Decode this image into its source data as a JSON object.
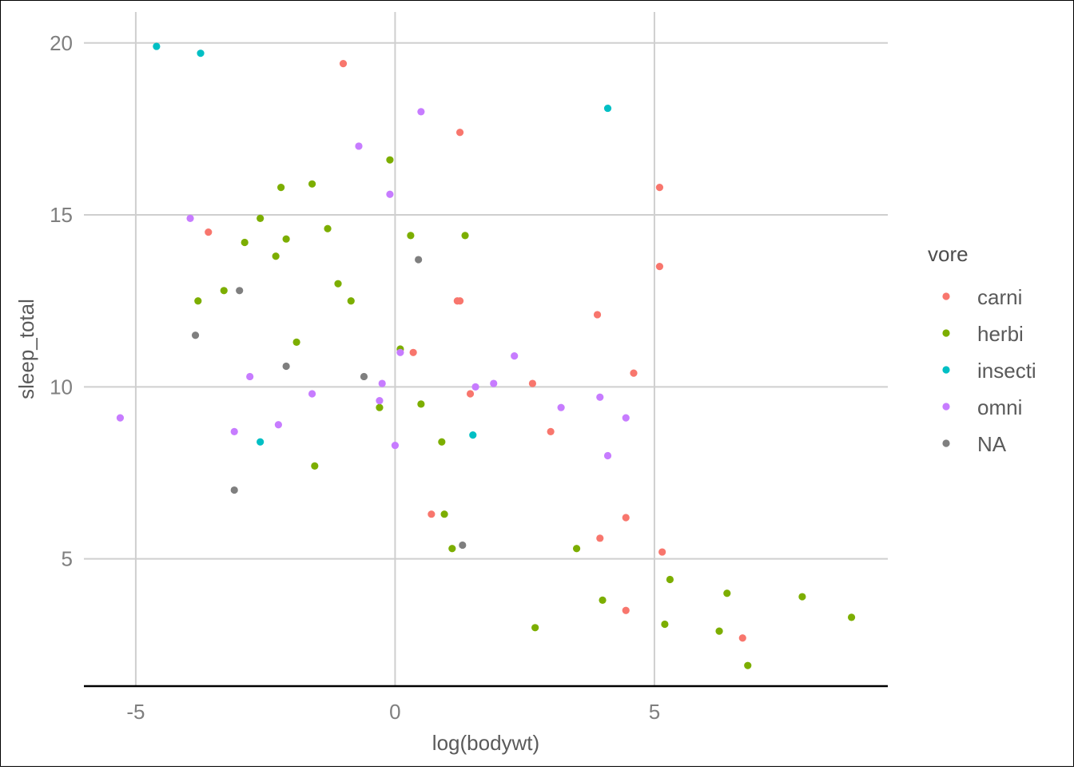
{
  "chart_data": {
    "type": "scatter",
    "xlabel": "log(bodywt)",
    "ylabel": "sleep_total",
    "xlim": [
      -6.0,
      9.5
    ],
    "ylim": [
      1.3,
      20.9
    ],
    "xticks": [
      -5,
      0,
      5
    ],
    "yticks": [
      5,
      10,
      15,
      20
    ],
    "x_tick_labels": [
      "-5",
      "0",
      "5"
    ],
    "y_tick_labels": [
      "5",
      "10",
      "15",
      "20"
    ],
    "grid": true,
    "legend": {
      "title": "vore",
      "position": "right"
    },
    "series": [
      {
        "name": "carni",
        "color": "#F8766D",
        "points": [
          [
            -1.0,
            19.4
          ],
          [
            1.25,
            17.4
          ],
          [
            5.1,
            15.8
          ],
          [
            -3.6,
            14.5
          ],
          [
            5.1,
            13.5
          ],
          [
            1.2,
            12.5
          ],
          [
            1.25,
            12.5
          ],
          [
            3.9,
            12.1
          ],
          [
            0.35,
            11.0
          ],
          [
            4.6,
            10.4
          ],
          [
            2.65,
            10.1
          ],
          [
            1.45,
            9.8
          ],
          [
            3.0,
            8.7
          ],
          [
            0.7,
            6.3
          ],
          [
            4.45,
            6.2
          ],
          [
            3.95,
            5.6
          ],
          [
            5.15,
            5.2
          ],
          [
            4.45,
            3.5
          ],
          [
            6.7,
            2.7
          ]
        ]
      },
      {
        "name": "herbi",
        "color": "#7CAE00",
        "points": [
          [
            -0.1,
            16.6
          ],
          [
            -1.6,
            15.9
          ],
          [
            -2.2,
            15.8
          ],
          [
            -2.6,
            14.9
          ],
          [
            -1.3,
            14.6
          ],
          [
            0.3,
            14.4
          ],
          [
            1.35,
            14.4
          ],
          [
            -2.1,
            14.3
          ],
          [
            -2.9,
            14.2
          ],
          [
            -2.3,
            13.8
          ],
          [
            -1.1,
            13.0
          ],
          [
            -3.3,
            12.8
          ],
          [
            -3.8,
            12.5
          ],
          [
            -0.85,
            12.5
          ],
          [
            -1.9,
            11.3
          ],
          [
            0.1,
            11.1
          ],
          [
            0.5,
            9.5
          ],
          [
            -0.3,
            9.4
          ],
          [
            0.9,
            8.4
          ],
          [
            -1.55,
            7.7
          ],
          [
            0.95,
            6.3
          ],
          [
            1.1,
            5.3
          ],
          [
            3.5,
            5.3
          ],
          [
            5.3,
            4.4
          ],
          [
            6.4,
            4.0
          ],
          [
            7.85,
            3.9
          ],
          [
            4.0,
            3.8
          ],
          [
            8.8,
            3.3
          ],
          [
            5.2,
            3.1
          ],
          [
            2.7,
            3.0
          ],
          [
            6.25,
            2.9
          ],
          [
            6.8,
            1.9
          ]
        ]
      },
      {
        "name": "insecti",
        "color": "#00BFC4",
        "points": [
          [
            -4.6,
            19.9
          ],
          [
            -3.75,
            19.7
          ],
          [
            4.1,
            18.1
          ],
          [
            -2.6,
            8.4
          ],
          [
            1.5,
            8.6
          ]
        ]
      },
      {
        "name": "omni",
        "color": "#C77CFF",
        "points": [
          [
            0.5,
            18.0
          ],
          [
            -0.7,
            17.0
          ],
          [
            -0.1,
            15.6
          ],
          [
            -3.95,
            14.9
          ],
          [
            2.3,
            10.9
          ],
          [
            -2.8,
            10.3
          ],
          [
            -0.25,
            10.1
          ],
          [
            1.55,
            10.0
          ],
          [
            1.9,
            10.1
          ],
          [
            0.1,
            11.0
          ],
          [
            -1.6,
            9.8
          ],
          [
            3.95,
            9.7
          ],
          [
            -0.3,
            9.6
          ],
          [
            3.2,
            9.4
          ],
          [
            -5.3,
            9.1
          ],
          [
            4.45,
            9.1
          ],
          [
            -2.25,
            8.9
          ],
          [
            -3.1,
            8.7
          ],
          [
            0.0,
            8.3
          ],
          [
            4.1,
            8.0
          ]
        ]
      },
      {
        "name": "NA",
        "color": "#7F7F7F",
        "points": [
          [
            0.45,
            13.7
          ],
          [
            -3.0,
            12.8
          ],
          [
            -3.85,
            11.5
          ],
          [
            -2.1,
            10.6
          ],
          [
            -0.6,
            10.3
          ],
          [
            -3.1,
            7.0
          ],
          [
            1.3,
            5.4
          ]
        ]
      }
    ]
  }
}
